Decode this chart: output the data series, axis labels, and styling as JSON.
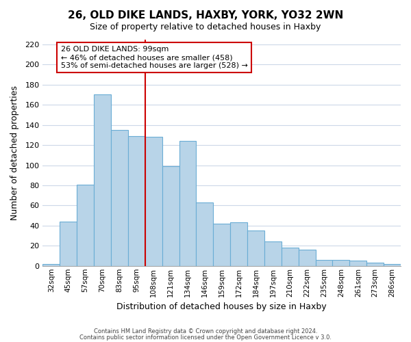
{
  "title": "26, OLD DIKE LANDS, HAXBY, YORK, YO32 2WN",
  "subtitle": "Size of property relative to detached houses in Haxby",
  "xlabel": "Distribution of detached houses by size in Haxby",
  "ylabel": "Number of detached properties",
  "categories": [
    "32sqm",
    "45sqm",
    "57sqm",
    "70sqm",
    "83sqm",
    "95sqm",
    "108sqm",
    "121sqm",
    "134sqm",
    "146sqm",
    "159sqm",
    "172sqm",
    "184sqm",
    "197sqm",
    "210sqm",
    "222sqm",
    "235sqm",
    "248sqm",
    "261sqm",
    "273sqm",
    "286sqm"
  ],
  "values": [
    2,
    44,
    81,
    170,
    135,
    129,
    128,
    99,
    124,
    63,
    42,
    43,
    35,
    24,
    18,
    16,
    6,
    6,
    5,
    3,
    2
  ],
  "bar_color": "#b8d4e8",
  "bar_edge_color": "#6aadd5",
  "vline_x": 5.5,
  "vline_color": "#cc0000",
  "annotation_title": "26 OLD DIKE LANDS: 99sqm",
  "annotation_line1": "← 46% of detached houses are smaller (458)",
  "annotation_line2": "53% of semi-detached houses are larger (528) →",
  "annotation_box_color": "#ffffff",
  "annotation_box_edge": "#cc0000",
  "ylim": [
    0,
    225
  ],
  "yticks": [
    0,
    20,
    40,
    60,
    80,
    100,
    120,
    140,
    160,
    180,
    200,
    220
  ],
  "footer1": "Contains HM Land Registry data © Crown copyright and database right 2024.",
  "footer2": "Contains public sector information licensed under the Open Government Licence v 3.0.",
  "background_color": "#ffffff",
  "grid_color": "#ccd8e8"
}
